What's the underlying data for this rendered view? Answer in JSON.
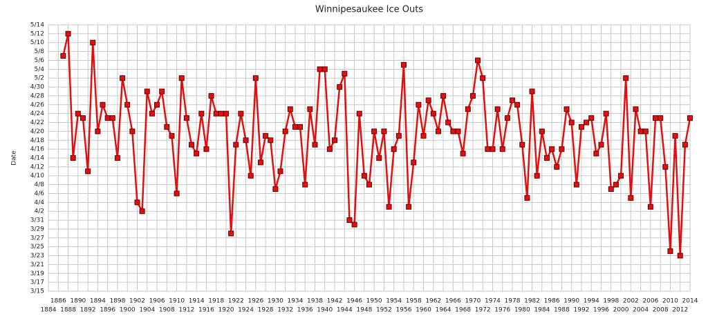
{
  "chart_data": {
    "type": "line",
    "title": "Winnipesaukee Ice Outs",
    "y_label": "Date",
    "grid": true,
    "x": [
      1887,
      1888,
      1889,
      1890,
      1891,
      1892,
      1893,
      1894,
      1895,
      1896,
      1897,
      1898,
      1899,
      1900,
      1901,
      1902,
      1903,
      1904,
      1905,
      1906,
      1907,
      1908,
      1909,
      1910,
      1911,
      1912,
      1913,
      1914,
      1915,
      1916,
      1917,
      1918,
      1919,
      1920,
      1921,
      1922,
      1923,
      1924,
      1925,
      1926,
      1927,
      1928,
      1929,
      1930,
      1931,
      1932,
      1933,
      1934,
      1935,
      1936,
      1937,
      1938,
      1939,
      1940,
      1941,
      1942,
      1943,
      1944,
      1945,
      1946,
      1947,
      1948,
      1949,
      1950,
      1951,
      1952,
      1953,
      1954,
      1955,
      1956,
      1957,
      1958,
      1959,
      1960,
      1961,
      1962,
      1963,
      1964,
      1965,
      1966,
      1967,
      1968,
      1969,
      1970,
      1971,
      1972,
      1973,
      1974,
      1975,
      1976,
      1977,
      1978,
      1979,
      1980,
      1981,
      1982,
      1983,
      1984,
      1985,
      1986,
      1987,
      1988,
      1989,
      1990,
      1991,
      1992,
      1993,
      1994,
      1995,
      1996,
      1997,
      1998,
      1999,
      2000,
      2001,
      2002,
      2003,
      2004,
      2005,
      2006,
      2007,
      2008,
      2009,
      2010,
      2011,
      2012,
      2013,
      2014
    ],
    "series": [
      {
        "color": "#e01010",
        "values": [
          127,
          132,
          104,
          114,
          113,
          101,
          130,
          110,
          116,
          113,
          113,
          104,
          122,
          116,
          110,
          94,
          92,
          119,
          114,
          116,
          119,
          111,
          109,
          96,
          122,
          113,
          107,
          105,
          114,
          106,
          118,
          114,
          114,
          114,
          87,
          107,
          114,
          108,
          100,
          122,
          103,
          109,
          108,
          97,
          101,
          110,
          115,
          111,
          111,
          98,
          115,
          107,
          124,
          124,
          106,
          108,
          120,
          123,
          90,
          89,
          114,
          100,
          98,
          110,
          104,
          110,
          93,
          106,
          109,
          125,
          93,
          103,
          116,
          109,
          117,
          114,
          110,
          118,
          112,
          110,
          110,
          105,
          115,
          118,
          126,
          122,
          106,
          106,
          115,
          106,
          113,
          117,
          116,
          107,
          95,
          119,
          100,
          110,
          104,
          106,
          102,
          106,
          115,
          112,
          98,
          111,
          112,
          113,
          105,
          107,
          114,
          97,
          98,
          100,
          122,
          95,
          115,
          110,
          110,
          93,
          113,
          113,
          102,
          83,
          109,
          82,
          107,
          113
        ]
      }
    ],
    "xlim": [
      1884,
      2014
    ],
    "xticks": [
      1884,
      1886,
      1888,
      1890,
      1892,
      1894,
      1896,
      1898,
      1900,
      1902,
      1904,
      1906,
      1908,
      1910,
      1912,
      1914,
      1916,
      1918,
      1920,
      1922,
      1924,
      1926,
      1928,
      1930,
      1932,
      1934,
      1936,
      1938,
      1940,
      1942,
      1944,
      1946,
      1948,
      1950,
      1952,
      1954,
      1956,
      1958,
      1960,
      1962,
      1964,
      1966,
      1968,
      1970,
      1972,
      1974,
      1976,
      1978,
      1980,
      1982,
      1984,
      1986,
      1988,
      1990,
      1992,
      1994,
      1996,
      1998,
      2000,
      2002,
      2004,
      2006,
      2008,
      2010,
      2012,
      2014
    ],
    "ylim": [
      74,
      134
    ],
    "yticks": [
      {
        "value": 74,
        "label": "3/15"
      },
      {
        "value": 76,
        "label": "3/17"
      },
      {
        "value": 78,
        "label": "3/19"
      },
      {
        "value": 80,
        "label": "3/21"
      },
      {
        "value": 82,
        "label": "3/23"
      },
      {
        "value": 84,
        "label": "3/25"
      },
      {
        "value": 86,
        "label": "3/27"
      },
      {
        "value": 88,
        "label": "3/29"
      },
      {
        "value": 90,
        "label": "3/31"
      },
      {
        "value": 92,
        "label": "4/2"
      },
      {
        "value": 94,
        "label": "4/4"
      },
      {
        "value": 96,
        "label": "4/6"
      },
      {
        "value": 98,
        "label": "4/8"
      },
      {
        "value": 100,
        "label": "4/10"
      },
      {
        "value": 102,
        "label": "4/12"
      },
      {
        "value": 104,
        "label": "4/14"
      },
      {
        "value": 106,
        "label": "4/16"
      },
      {
        "value": 108,
        "label": "4/18"
      },
      {
        "value": 110,
        "label": "4/20"
      },
      {
        "value": 112,
        "label": "4/22"
      },
      {
        "value": 114,
        "label": "4/24"
      },
      {
        "value": 116,
        "label": "4/26"
      },
      {
        "value": 118,
        "label": "4/28"
      },
      {
        "value": 120,
        "label": "4/30"
      },
      {
        "value": 122,
        "label": "5/2"
      },
      {
        "value": 124,
        "label": "5/4"
      },
      {
        "value": 126,
        "label": "5/6"
      },
      {
        "value": 128,
        "label": "5/8"
      },
      {
        "value": 130,
        "label": "5/10"
      },
      {
        "value": 132,
        "label": "5/12"
      },
      {
        "value": 134,
        "label": "5/14"
      }
    ]
  }
}
